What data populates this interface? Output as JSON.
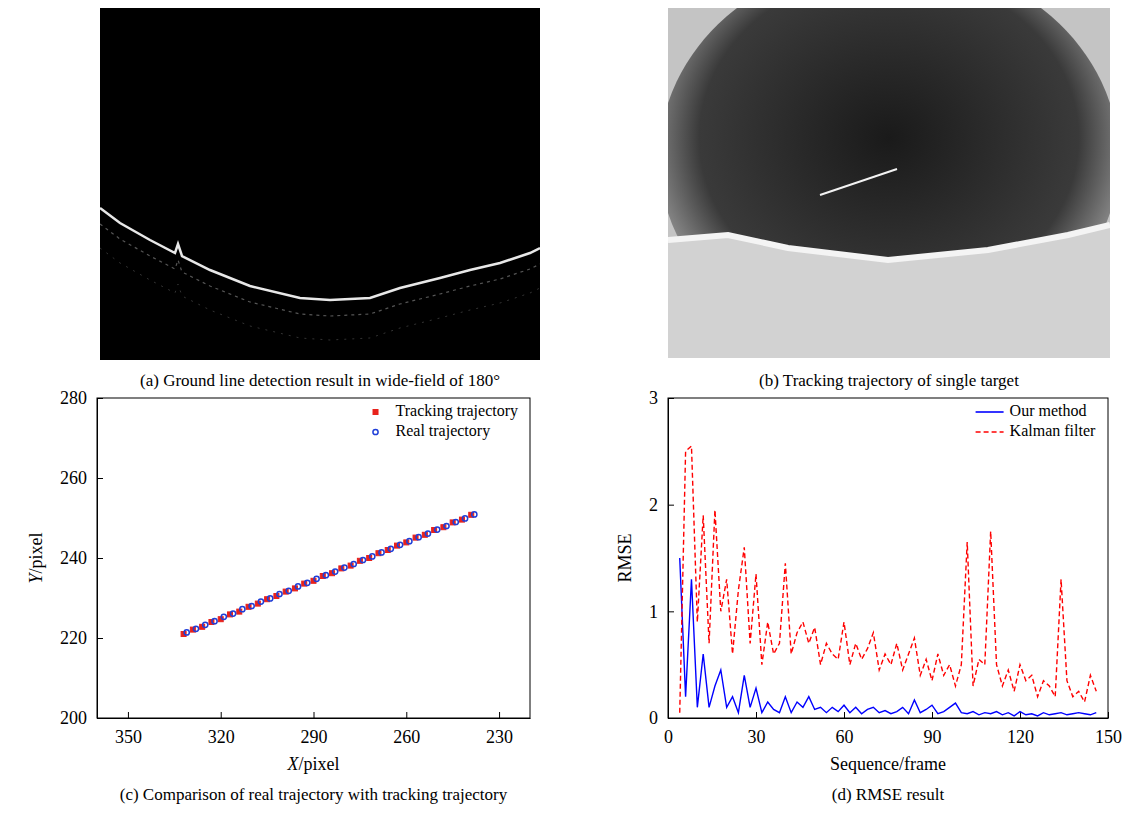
{
  "chart_data": [
    {
      "type": "image",
      "title": "(a) Ground line detection result in wide-field of 180°"
    },
    {
      "type": "image",
      "title": "(b) Tracking trajectory of single target"
    },
    {
      "type": "scatter",
      "title": "(c) Comparison of real trajectory with tracking trajectory",
      "xlabel": "X/pixel",
      "ylabel": "Y/pixel",
      "xlim": [
        360,
        220
      ],
      "xticks": [
        350,
        320,
        290,
        260,
        230
      ],
      "ylim": [
        200,
        280
      ],
      "yticks": [
        200,
        220,
        240,
        260,
        280
      ],
      "legend": "upper right",
      "series": [
        {
          "name": "Tracking trajectory",
          "color": "#e8221c",
          "marker": "square",
          "x": [
            332,
            329,
            326,
            323,
            320,
            317,
            314,
            311,
            308,
            305,
            302,
            299,
            296,
            293,
            290,
            287,
            284,
            281,
            278,
            275,
            272,
            269,
            266,
            263,
            260,
            257,
            254,
            251,
            248,
            245,
            242,
            239
          ],
          "values": [
            221.0,
            222.1,
            222.8,
            224.0,
            224.7,
            225.9,
            226.6,
            227.8,
            228.6,
            229.7,
            230.5,
            231.6,
            232.4,
            233.6,
            234.3,
            235.5,
            236.2,
            237.4,
            238.1,
            239.3,
            240.0,
            241.2,
            242.0,
            243.1,
            243.9,
            245.1,
            245.8,
            247.0,
            247.7,
            248.9,
            249.6,
            250.8
          ]
        },
        {
          "name": "Real trajectory",
          "color": "#1f3fd8",
          "marker": "circle",
          "x": [
            331,
            328,
            325,
            322,
            319,
            316,
            313,
            310,
            307,
            304,
            301,
            298,
            295,
            292,
            289,
            286,
            283,
            280,
            277,
            274,
            271,
            268,
            265,
            262,
            259,
            256,
            253,
            250,
            247,
            244,
            241,
            238
          ],
          "values": [
            221.4,
            222.3,
            223.3,
            224.2,
            225.3,
            226.1,
            227.2,
            228.0,
            229.1,
            229.9,
            231.0,
            231.8,
            232.9,
            233.8,
            234.8,
            235.7,
            236.6,
            237.6,
            238.5,
            239.5,
            240.4,
            241.4,
            242.3,
            243.3,
            244.2,
            245.2,
            246.1,
            247.1,
            248.0,
            249.0,
            249.9,
            250.9
          ]
        }
      ]
    },
    {
      "type": "line",
      "title": "(d) RMSE result",
      "xlabel": "Sequence/frame",
      "ylabel": "RMSE",
      "xlim": [
        0,
        150
      ],
      "xticks": [
        0,
        30,
        60,
        90,
        120,
        150
      ],
      "ylim": [
        0,
        3
      ],
      "yticks": [
        0,
        1,
        2,
        3
      ],
      "legend": "upper right",
      "x": [
        4,
        6,
        8,
        10,
        12,
        14,
        16,
        18,
        20,
        22,
        24,
        26,
        28,
        30,
        32,
        34,
        36,
        38,
        40,
        42,
        44,
        46,
        48,
        50,
        52,
        54,
        56,
        58,
        60,
        62,
        64,
        66,
        68,
        70,
        72,
        74,
        76,
        78,
        80,
        82,
        84,
        86,
        88,
        90,
        92,
        94,
        96,
        98,
        100,
        102,
        104,
        106,
        108,
        110,
        112,
        114,
        116,
        118,
        120,
        122,
        124,
        126,
        128,
        130,
        132,
        134,
        136,
        138,
        140,
        142,
        144,
        146
      ],
      "series": [
        {
          "name": "Our method",
          "color": "#0000ff",
          "line_style": "solid",
          "values": [
            1.5,
            0.2,
            1.3,
            0.1,
            0.6,
            0.1,
            0.3,
            0.45,
            0.1,
            0.2,
            0.05,
            0.4,
            0.1,
            0.28,
            0.05,
            0.15,
            0.08,
            0.05,
            0.2,
            0.05,
            0.15,
            0.1,
            0.2,
            0.08,
            0.1,
            0.05,
            0.1,
            0.06,
            0.12,
            0.05,
            0.1,
            0.04,
            0.08,
            0.1,
            0.05,
            0.07,
            0.04,
            0.06,
            0.1,
            0.04,
            0.17,
            0.05,
            0.08,
            0.12,
            0.04,
            0.06,
            0.1,
            0.14,
            0.05,
            0.04,
            0.06,
            0.03,
            0.05,
            0.04,
            0.06,
            0.03,
            0.05,
            0.02,
            0.06,
            0.03,
            0.04,
            0.02,
            0.05,
            0.03,
            0.04,
            0.05,
            0.03,
            0.04,
            0.05,
            0.04,
            0.03,
            0.05
          ]
        },
        {
          "name": "Kalman filter",
          "color": "#ff0000",
          "line_style": "dashed",
          "values": [
            0.05,
            2.5,
            2.55,
            0.9,
            1.9,
            0.7,
            1.95,
            1.0,
            1.3,
            0.6,
            1.2,
            1.6,
            0.7,
            1.35,
            0.5,
            0.9,
            0.6,
            0.7,
            1.45,
            0.6,
            0.8,
            0.9,
            0.7,
            0.85,
            0.5,
            0.7,
            0.6,
            0.55,
            0.9,
            0.5,
            0.7,
            0.55,
            0.65,
            0.8,
            0.45,
            0.6,
            0.5,
            0.7,
            0.45,
            0.6,
            0.75,
            0.4,
            0.55,
            0.35,
            0.6,
            0.4,
            0.5,
            0.3,
            0.5,
            1.65,
            0.3,
            0.55,
            0.5,
            1.75,
            0.5,
            0.3,
            0.45,
            0.25,
            0.5,
            0.35,
            0.4,
            0.2,
            0.35,
            0.3,
            0.2,
            1.3,
            0.35,
            0.2,
            0.25,
            0.15,
            0.4,
            0.25
          ]
        }
      ]
    }
  ]
}
